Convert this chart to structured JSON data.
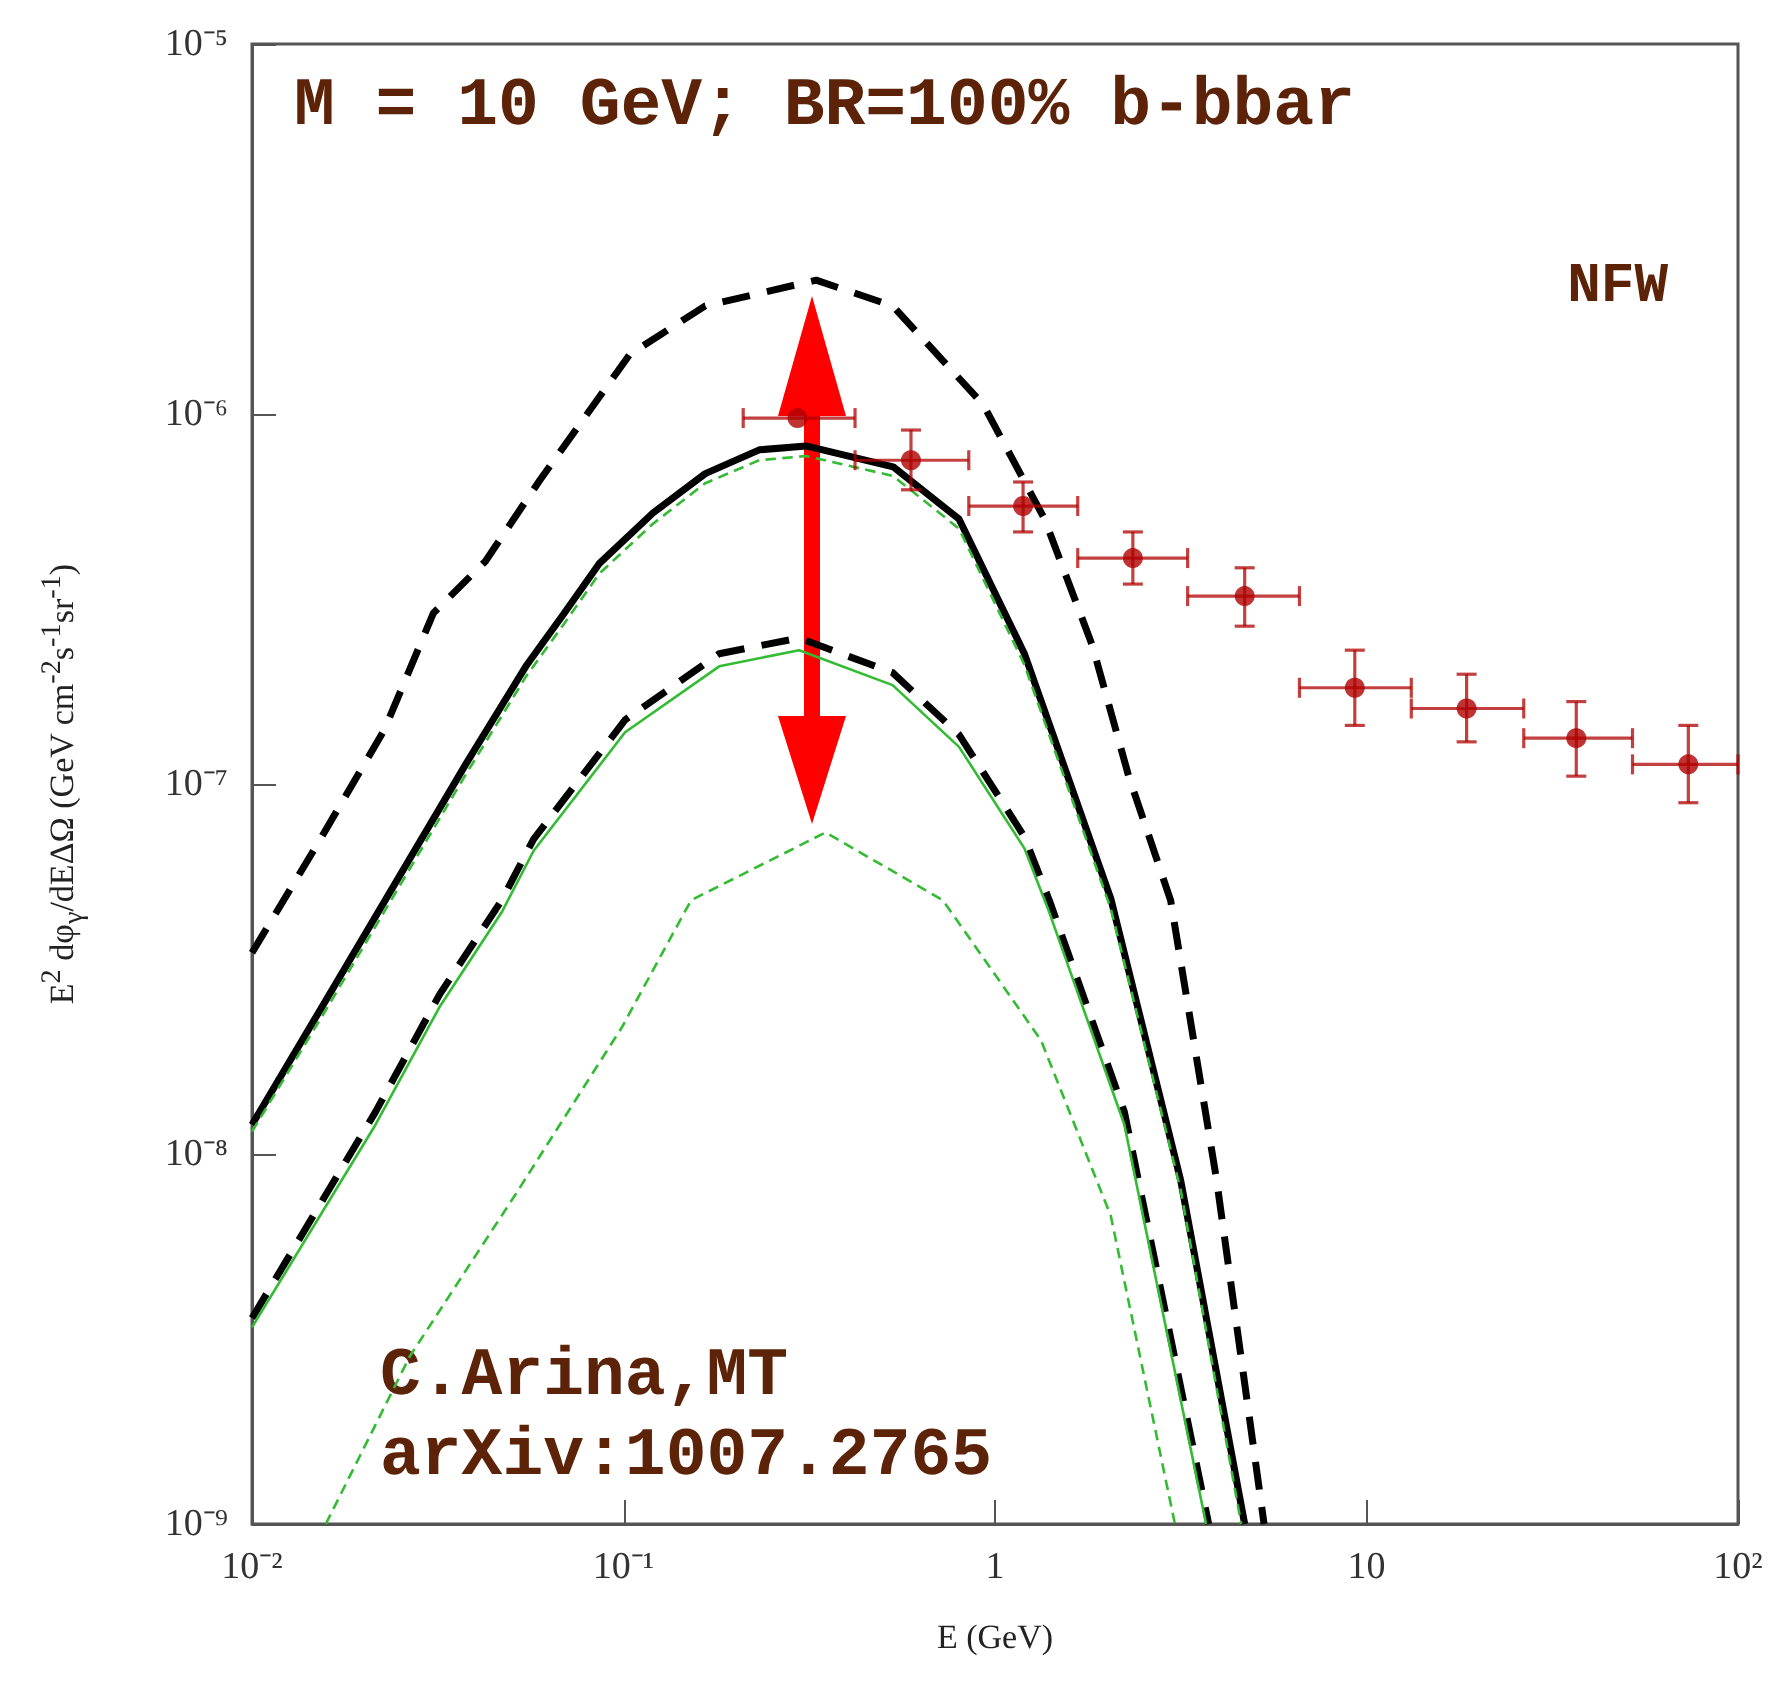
{
  "chart_data": {
    "type": "line",
    "title": "M = 10 GeV; BR=100% b-bbar",
    "xlabel": "E (GeV)",
    "ylabel": "E$^{2}$ dφ$_{γ}$/dEΔΩ (GeV cm$^{-2}$s$^{-1}$sr$^{-1}$)",
    "annotations": [
      "NFW",
      "C.Arina,MT",
      "arXiv:1007.2765"
    ],
    "log": "xy",
    "xlim": [
      0.01,
      100
    ],
    "ylim": [
      1e-09,
      1e-05
    ],
    "xticks": [
      {
        "value": 0.01,
        "label": "10⁻²"
      },
      {
        "value": 0.1,
        "label": "10⁻¹"
      },
      1,
      10,
      {
        "value": 100,
        "label": "10²"
      }
    ],
    "yticks": [
      {
        "value": 1e-09,
        "label": "10⁻⁹"
      },
      {
        "value": 1e-08,
        "label": "10⁻⁸"
      },
      {
        "value": 1e-07,
        "label": "10⁻⁷"
      },
      {
        "value": 1e-06,
        "label": "10⁻⁶"
      },
      {
        "value": 1e-05,
        "label": "10⁻⁵"
      }
    ],
    "series": [
      {
        "color": "#000000",
        "line_style": "dashed",
        "marker": "none",
        "x": [
          0.01,
          0.0149,
          0.0227,
          0.0308,
          0.0425,
          0.0594,
          0.104,
          0.166,
          0.33,
          0.53,
          0.93,
          1.36,
          1.83,
          2.29,
          2.97,
          3.95,
          5.3
        ],
        "values": [
          3.5e-08,
          6.8e-08,
          1.4e-07,
          2.9e-07,
          4e-07,
          6.6e-07,
          1.45e-06,
          1.96e-06,
          2.3e-06,
          1.96e-06,
          1.06e-06,
          5.2e-07,
          2.36e-07,
          1.05e-07,
          4.85e-08,
          8.5e-09,
          1e-09
        ]
      },
      {
        "color": "#000000",
        "line_style": "solid",
        "marker": "none",
        "x": [
          0.01,
          0.0158,
          0.0376,
          0.0546,
          0.069,
          0.086,
          0.12,
          0.166,
          0.232,
          0.31,
          0.532,
          0.8,
          1.2,
          2.05,
          3.16,
          4.7
        ],
        "values": [
          1.2e-08,
          2.6e-08,
          1.13e-07,
          2.08e-07,
          2.88e-07,
          3.94e-07,
          5.4e-07,
          6.9e-07,
          8e-07,
          8.2e-07,
          7.2e-07,
          5.2e-07,
          2.25e-07,
          4.9e-08,
          8.5e-09,
          1e-09
        ]
      },
      {
        "color": "#33bb33",
        "line_style": "dashed",
        "marker": "none",
        "x": [
          0.01,
          0.0158,
          0.0376,
          0.0546,
          0.069,
          0.086,
          0.12,
          0.166,
          0.232,
          0.31,
          0.532,
          0.8,
          1.2,
          2.05,
          3.16,
          4.6
        ],
        "values": [
          1.15e-08,
          2.45e-08,
          1.06e-07,
          1.95e-07,
          2.7e-07,
          3.7e-07,
          5.05e-07,
          6.5e-07,
          7.5e-07,
          7.7e-07,
          6.8e-07,
          4.9e-07,
          2.1e-07,
          4.6e-08,
          8e-09,
          1e-09
        ]
      },
      {
        "color": "#000000",
        "line_style": "dashed",
        "marker": "none",
        "x": [
          0.01,
          0.0215,
          0.032,
          0.047,
          0.0573,
          0.101,
          0.181,
          0.297,
          0.53,
          0.8,
          1.2,
          1.4,
          2.23,
          3.76
        ],
        "values": [
          3.6e-09,
          1.3e-08,
          2.7e-08,
          4.85e-08,
          7.1e-08,
          1.49e-07,
          2.25e-07,
          2.48e-07,
          2e-07,
          1.36e-07,
          7.2e-08,
          4.85e-08,
          1.3e-08,
          1e-09
        ]
      },
      {
        "color": "#33bb33",
        "line_style": "solid",
        "marker": "none",
        "x": [
          0.01,
          0.0215,
          0.032,
          0.047,
          0.0573,
          0.101,
          0.181,
          0.297,
          0.53,
          0.8,
          1.2,
          1.4,
          2.23,
          3.7
        ],
        "values": [
          3.4e-09,
          1.2e-08,
          2.5e-08,
          4.5e-08,
          6.6e-08,
          1.38e-07,
          2.08e-07,
          2.3e-07,
          1.85e-07,
          1.26e-07,
          6.7e-08,
          4.5e-08,
          1.2e-08,
          1e-09
        ]
      },
      {
        "color": "#33bb33",
        "line_style": "dashed",
        "marker": "none",
        "x": [
          0.0158,
          0.0266,
          0.0513,
          0.099,
          0.152,
          0.35,
          0.724,
          1.33,
          2.05,
          3.05
        ],
        "values": [
          1e-09,
          2.84e-09,
          7.8e-09,
          2.2e-08,
          4.85e-08,
          7.4e-08,
          4.85e-08,
          2.03e-08,
          6.8e-09,
          1e-09
        ]
      },
      {
        "type": "scatter",
        "color": "#b00000",
        "marker": "circle",
        "x": [
          0.294,
          0.594,
          1.19,
          2.35,
          4.7,
          9.3,
          18.6,
          36.7,
          73.5
        ],
        "values": [
          9.75e-07,
          7.5e-07,
          5.64e-07,
          4.08e-07,
          3.22e-07,
          1.82e-07,
          1.6e-07,
          1.33e-07,
          1.13e-07
        ],
        "errors": [
          null,
          [
            6.24e-07,
            9.05e-07
          ],
          [
            4.8e-07,
            6.55e-07
          ],
          [
            3.47e-07,
            4.8e-07
          ],
          [
            2.67e-07,
            3.84e-07
          ],
          [
            1.44e-07,
            2.3e-07
          ],
          [
            1.3e-07,
            1.98e-07
          ],
          [
            1.05e-07,
            1.67e-07
          ],
          [
            8.9e-08,
            1.44e-07
          ]
        ],
        "xerrors": [
          [
            0.21,
            0.42
          ],
          [
            0.42,
            0.85
          ],
          [
            0.85,
            1.67
          ],
          [
            1.67,
            3.3
          ],
          [
            3.3,
            6.6
          ],
          [
            6.6,
            13.2
          ],
          [
            13.2,
            26.5
          ],
          [
            26.5,
            52
          ],
          [
            52,
            100
          ]
        ]
      }
    ]
  }
}
